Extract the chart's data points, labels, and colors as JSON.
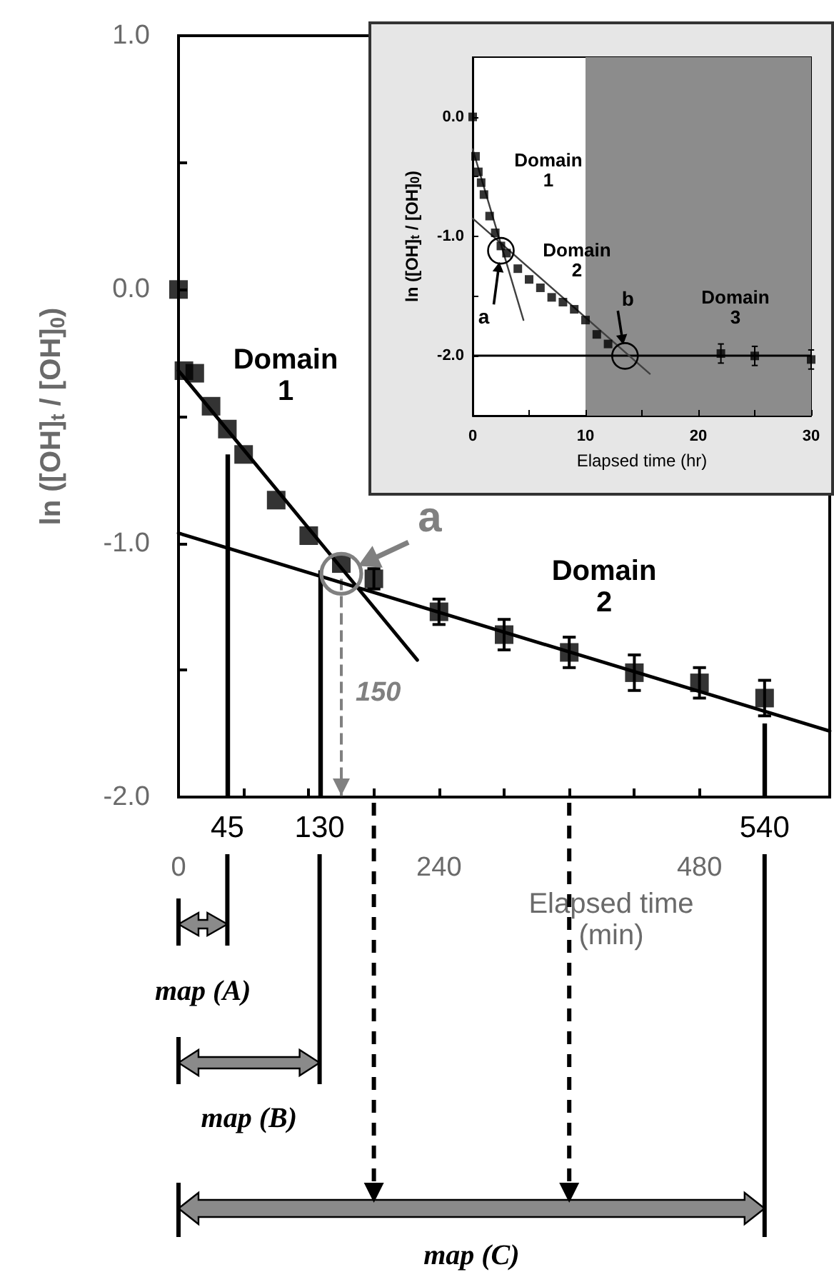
{
  "chart_data": [
    {
      "type": "scatter",
      "xlabel": "Elapsed time\n(min)",
      "ylabel": "ln ([OH]$_{t}$ / [OH]$_{0}$)",
      "xlim": [
        0,
        600
      ],
      "xticks": [
        0,
        {
          "value": 60,
          "label": null
        },
        {
          "value": 120,
          "label": null
        },
        {
          "value": 180,
          "label": null
        },
        240,
        {
          "value": 300,
          "label": null
        },
        {
          "value": 360,
          "label": null
        },
        {
          "value": 420,
          "label": null
        },
        480,
        {
          "value": 540,
          "label": null
        },
        {
          "value": 600,
          "label": null
        }
      ],
      "ylim": [
        -2,
        1
      ],
      "yticks": [
        {
          "value": -2,
          "label": "-2.0"
        },
        {
          "value": -1.5,
          "label": null
        },
        {
          "value": -1,
          "label": "-1.0"
        },
        {
          "value": -0.5,
          "label": null
        },
        {
          "value": 0,
          "label": "0.0"
        },
        {
          "value": 0.5,
          "label": null
        },
        {
          "value": 1,
          "label": "1.0"
        }
      ],
      "series": [
        {
          "type": "scatter",
          "color": "#000000",
          "marker": "square",
          "x": [
            0,
            5,
            15,
            30,
            45,
            60,
            90,
            120,
            150,
            180,
            240,
            300,
            360,
            420,
            480,
            540
          ],
          "values": [
            0,
            -0.32,
            -0.33,
            -0.46,
            -0.55,
            -0.65,
            -0.83,
            -0.97,
            -1.08,
            -1.14,
            -1.27,
            -1.36,
            -1.43,
            -1.51,
            -1.55,
            -1.61
          ],
          "errors": [
            null,
            null,
            null,
            null,
            null,
            null,
            null,
            null,
            null,
            0.04,
            0.05,
            0.06,
            0.06,
            0.07,
            0.06,
            0.07
          ]
        },
        {
          "type": "line",
          "color": "#000000",
          "marker": "none",
          "line_style": "solid",
          "x": [
            0,
            220
          ],
          "values": [
            -0.32,
            -1.46
          ]
        },
        {
          "type": "line",
          "color": "#000000",
          "marker": "none",
          "line_style": "solid",
          "x": [
            0,
            600
          ],
          "values": [
            -0.96,
            -1.74
          ]
        }
      ],
      "ref_lines": [
        {
          "axis": "x",
          "value": 45,
          "label": "45",
          "color": "#000000",
          "line_style": "solid"
        },
        {
          "axis": "x",
          "value": 130,
          "label": "130",
          "color": "#000000",
          "line_style": "solid"
        },
        {
          "axis": "x",
          "value": 540,
          "label": "540",
          "color": "#000000",
          "line_style": "solid"
        },
        {
          "axis": "x",
          "value": 150,
          "label": "150",
          "color": "#808080",
          "line_style": "dashed"
        }
      ],
      "annotations": [
        "Domain\n1",
        "Domain\n2",
        {
          "text": "a",
          "x": 150,
          "y": -1.12
        },
        "map (A)",
        "map (B)",
        "map (C)"
      ],
      "grid": false
    },
    {
      "type": "scatter",
      "xlabel": "Elapsed time (hr)",
      "ylabel": "ln ([OH]$_{t}$ / [OH]$_{0}$)",
      "xlim": [
        0,
        30
      ],
      "xticks": [
        0,
        {
          "value": 5,
          "label": null
        },
        10,
        {
          "value": 15,
          "label": null
        },
        20,
        {
          "value": 25,
          "label": null
        },
        30
      ],
      "ylim": [
        -2.5,
        0.5
      ],
      "yticks": [
        {
          "value": -2,
          "label": "-2.0"
        },
        {
          "value": -1.5,
          "label": null
        },
        {
          "value": -1,
          "label": "-1.0"
        },
        {
          "value": -0.5,
          "label": null
        },
        {
          "value": 0,
          "label": "0.0"
        }
      ],
      "series": [
        {
          "type": "scatter",
          "color": "#000000",
          "marker": "square",
          "x": [
            0,
            0.083,
            0.25,
            0.5,
            0.75,
            1,
            1.5,
            2,
            2.5,
            3,
            4,
            5,
            6,
            7,
            8,
            9,
            10,
            11,
            12,
            22,
            25,
            30
          ],
          "values": [
            0,
            null,
            -0.33,
            -0.46,
            -0.55,
            -0.65,
            -0.83,
            -0.97,
            -1.08,
            -1.14,
            -1.27,
            -1.36,
            -1.43,
            -1.51,
            -1.55,
            -1.61,
            -1.7,
            -1.82,
            -1.9,
            -1.98,
            -2.0,
            -2.03
          ],
          "errors": [
            null,
            null,
            null,
            null,
            null,
            null,
            null,
            null,
            null,
            null,
            null,
            null,
            null,
            null,
            null,
            null,
            null,
            null,
            null,
            0.08,
            0.08,
            0.08
          ]
        },
        {
          "type": "line",
          "color": "#404040",
          "marker": "none",
          "line_style": "solid",
          "x": [
            0,
            4.5
          ],
          "values": [
            -0.27,
            -1.7
          ]
        },
        {
          "type": "line",
          "color": "#404040",
          "marker": "none",
          "line_style": "solid",
          "x": [
            0,
            15.7
          ],
          "values": [
            -0.85,
            -2.15
          ]
        }
      ],
      "ref_lines": [
        {
          "axis": "y",
          "value": -2.0,
          "color": "#000000",
          "line_style": "solid"
        }
      ],
      "bands": [
        {
          "axis": "x",
          "from": 10,
          "to": 30,
          "color": "#8c8c8c"
        }
      ],
      "annotations": [
        "Domain\n1",
        "Domain\n2",
        "Domain\n3",
        {
          "text": "a",
          "x": 2.5,
          "y": -1.12
        },
        {
          "text": "b",
          "x": 13.5,
          "y": -2.0
        }
      ],
      "grid": false
    }
  ]
}
